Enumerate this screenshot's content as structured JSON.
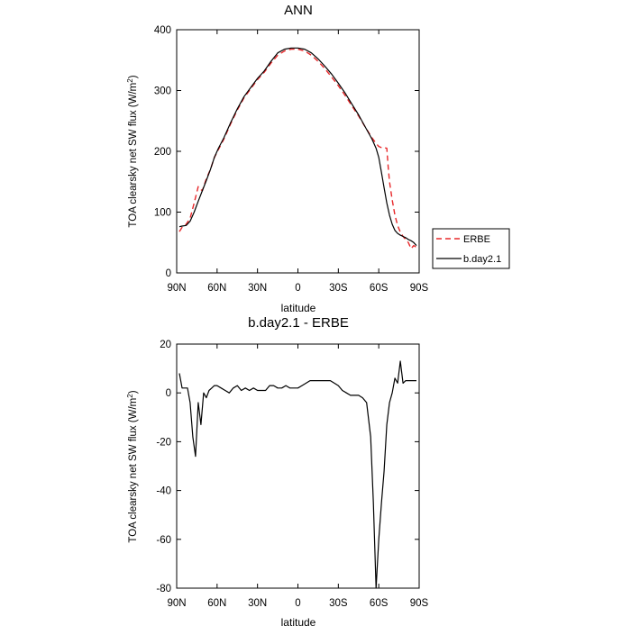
{
  "chart_data": [
    {
      "type": "line",
      "title": "ANN",
      "xlabel": "latitude",
      "ylabel_prefix": "TOA clearsky net SW flux (W/m",
      "ylabel_sup": "2",
      "ylabel_suffix": ")",
      "xlim": [
        90,
        -90
      ],
      "ylim": [
        0,
        400
      ],
      "yticks": [
        0,
        100,
        200,
        300,
        400
      ],
      "xticks": [
        {
          "value": 90,
          "label": "90N"
        },
        {
          "value": 60,
          "label": "60N"
        },
        {
          "value": 30,
          "label": "30N"
        },
        {
          "value": 0,
          "label": "0"
        },
        {
          "value": -30,
          "label": "30S"
        },
        {
          "value": -60,
          "label": "60S"
        },
        {
          "value": -90,
          "label": "90S"
        }
      ],
      "legend_position": "right",
      "series": [
        {
          "name": "ERBE",
          "color": "#e8282a",
          "dash": true,
          "x": [
            88,
            86,
            83,
            80,
            77,
            74,
            71,
            68,
            65,
            62,
            59,
            55,
            50,
            45,
            40,
            35,
            30,
            25,
            20,
            15,
            10,
            5,
            0,
            -5,
            -10,
            -15,
            -20,
            -25,
            -30,
            -35,
            -40,
            -45,
            -50,
            -55,
            -58,
            -60,
            -62,
            -64,
            -66,
            -67,
            -68,
            -70,
            -72,
            -74,
            -76,
            -78,
            -80,
            -82,
            -84,
            -86,
            -88
          ],
          "y": [
            68,
            75,
            80,
            90,
            115,
            142,
            135,
            155,
            170,
            190,
            203,
            220,
            245,
            268,
            288,
            303,
            318,
            330,
            345,
            358,
            365,
            368,
            368,
            365,
            358,
            348,
            336,
            322,
            308,
            292,
            275,
            258,
            240,
            222,
            213,
            208,
            206,
            206,
            205,
            175,
            150,
            120,
            95,
            78,
            67,
            60,
            55,
            50,
            40,
            45,
            42
          ]
        },
        {
          "name": "b.day2.1",
          "color": "#000000",
          "dash": false,
          "x": [
            88,
            86,
            83,
            80,
            77,
            74,
            71,
            68,
            65,
            62,
            59,
            55,
            50,
            45,
            40,
            35,
            30,
            25,
            20,
            15,
            10,
            5,
            0,
            -5,
            -10,
            -15,
            -20,
            -25,
            -30,
            -35,
            -40,
            -45,
            -50,
            -55,
            -58,
            -60,
            -62,
            -64,
            -66,
            -68,
            -70,
            -72,
            -74,
            -76,
            -78,
            -80,
            -82,
            -84,
            -86,
            -88
          ],
          "y": [
            76,
            77,
            78,
            85,
            100,
            118,
            135,
            152,
            170,
            190,
            205,
            222,
            247,
            270,
            290,
            305,
            320,
            332,
            348,
            362,
            368,
            370,
            370,
            368,
            362,
            352,
            340,
            327,
            312,
            296,
            278,
            260,
            240,
            220,
            205,
            190,
            165,
            140,
            115,
            95,
            80,
            70,
            65,
            62,
            60,
            58,
            55,
            53,
            50,
            45
          ]
        }
      ]
    },
    {
      "type": "line",
      "title": "b.day2.1 - ERBE",
      "xlabel": "latitude",
      "ylabel_prefix": "TOA clearsky net SW flux (W/m",
      "ylabel_sup": "2",
      "ylabel_suffix": ")",
      "xlim": [
        90,
        -90
      ],
      "ylim": [
        -80,
        20
      ],
      "yticks": [
        -80,
        -60,
        -40,
        -20,
        0,
        20
      ],
      "xticks": [
        {
          "value": 90,
          "label": "90N"
        },
        {
          "value": 60,
          "label": "60N"
        },
        {
          "value": 30,
          "label": "30N"
        },
        {
          "value": 0,
          "label": "0"
        },
        {
          "value": -30,
          "label": "30S"
        },
        {
          "value": -60,
          "label": "60S"
        },
        {
          "value": -90,
          "label": "90S"
        }
      ],
      "series": [
        {
          "name": "b.day2.1 - ERBE",
          "color": "#000000",
          "dash": false,
          "x": [
            88,
            86,
            84,
            82,
            80,
            78,
            76,
            74,
            72,
            70,
            68,
            66,
            64,
            62,
            60,
            57,
            54,
            51,
            48,
            45,
            42,
            39,
            36,
            33,
            30,
            27,
            24,
            21,
            18,
            15,
            12,
            9,
            6,
            3,
            0,
            -3,
            -6,
            -9,
            -12,
            -15,
            -18,
            -21,
            -24,
            -27,
            -30,
            -33,
            -36,
            -39,
            -42,
            -45,
            -48,
            -51,
            -54,
            -56,
            -58,
            -60,
            -62,
            -64,
            -66,
            -68,
            -70,
            -72,
            -74,
            -76,
            -78,
            -80,
            -82,
            -84,
            -86,
            -88
          ],
          "y": [
            8,
            2,
            2,
            2,
            -4,
            -18,
            -26,
            -4,
            -13,
            0,
            -2,
            1,
            2,
            3,
            3,
            2,
            1,
            0,
            2,
            3,
            1,
            2,
            1,
            2,
            1,
            1,
            1,
            3,
            3,
            2,
            2,
            3,
            2,
            2,
            2,
            3,
            4,
            5,
            5,
            5,
            5,
            5,
            5,
            4,
            3,
            1,
            0,
            -1,
            -1,
            -1,
            -2,
            -4,
            -18,
            -45,
            -80,
            -60,
            -45,
            -32,
            -13,
            -4,
            0,
            6,
            4,
            13,
            4,
            5,
            5,
            5,
            5,
            5
          ]
        }
      ]
    }
  ]
}
